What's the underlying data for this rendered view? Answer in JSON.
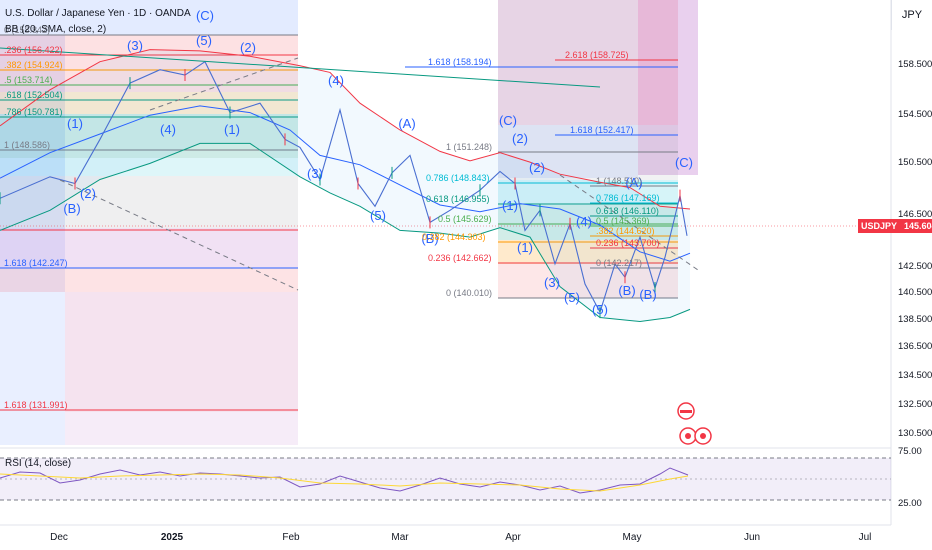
{
  "header": {
    "symbol_title": "U.S. Dollar / Japanese Yen · 1D · OANDA",
    "indicator_bb": "BB (20, SMA, close, 2)",
    "indicator_rsi": "RSI (14, close)",
    "unit": "JPY"
  },
  "last_price": {
    "symbol": "USDJPY",
    "value": "145.604",
    "color": "#f23645"
  },
  "chart_data": {
    "type": "line",
    "x_ticks": [
      "Dec",
      "2025",
      "Feb",
      "Mar",
      "Apr",
      "May",
      "Jun",
      "Jul"
    ],
    "y_ticks": [
      "158.500",
      "154.500",
      "150.500",
      "146.500",
      "142.500",
      "140.500",
      "138.500",
      "136.500",
      "134.500",
      "132.500",
      "130.500"
    ],
    "ylim": [
      128.8,
      161.2
    ],
    "rsi_ticks": [
      "75.00",
      "25.00"
    ],
    "price_path": [
      [
        0,
        148.4
      ],
      [
        50,
        150.0
      ],
      [
        75,
        149.5
      ],
      [
        100,
        152.8
      ],
      [
        130,
        157.0
      ],
      [
        160,
        158.0
      ],
      [
        185,
        157.6
      ],
      [
        205,
        158.6
      ],
      [
        230,
        154.8
      ],
      [
        260,
        155.5
      ],
      [
        285,
        152.8
      ],
      [
        300,
        152.2
      ],
      [
        320,
        149.8
      ],
      [
        340,
        155.0
      ],
      [
        358,
        149.5
      ],
      [
        375,
        147.8
      ],
      [
        392,
        150.3
      ],
      [
        410,
        151.6
      ],
      [
        430,
        146.6
      ],
      [
        450,
        147.5
      ],
      [
        480,
        149.0
      ],
      [
        500,
        150.4
      ],
      [
        515,
        149.5
      ],
      [
        525,
        146.0
      ],
      [
        540,
        147.5
      ],
      [
        555,
        143.5
      ],
      [
        570,
        146.5
      ],
      [
        585,
        142.0
      ],
      [
        600,
        139.9
      ],
      [
        615,
        143.5
      ],
      [
        625,
        142.5
      ],
      [
        640,
        145.5
      ],
      [
        655,
        141.7
      ],
      [
        665,
        144.0
      ],
      [
        680,
        148.6
      ],
      [
        687,
        145.6
      ]
    ],
    "bb_upper": [
      [
        0,
        153.8
      ],
      [
        50,
        156.5
      ],
      [
        100,
        158.6
      ],
      [
        150,
        159.5
      ],
      [
        200,
        159.4
      ],
      [
        250,
        159.0
      ],
      [
        300,
        158.3
      ],
      [
        330,
        157.8
      ],
      [
        360,
        155.5
      ],
      [
        400,
        153.5
      ],
      [
        440,
        151.9
      ],
      [
        470,
        151.2
      ],
      [
        500,
        151.8
      ],
      [
        530,
        151.1
      ],
      [
        560,
        150.2
      ],
      [
        600,
        149.6
      ],
      [
        630,
        149.2
      ],
      [
        660,
        147.8
      ],
      [
        690,
        147.6
      ]
    ],
    "bb_middle": [
      [
        0,
        149.9
      ],
      [
        50,
        151.8
      ],
      [
        100,
        153.2
      ],
      [
        150,
        154.6
      ],
      [
        200,
        155.3
      ],
      [
        250,
        154.8
      ],
      [
        290,
        153.5
      ],
      [
        320,
        151.6
      ],
      [
        360,
        150.9
      ],
      [
        400,
        149.4
      ],
      [
        440,
        147.9
      ],
      [
        480,
        147.4
      ],
      [
        520,
        148.0
      ],
      [
        560,
        147.6
      ],
      [
        600,
        146.4
      ],
      [
        640,
        144.4
      ],
      [
        670,
        143.7
      ],
      [
        690,
        144.3
      ]
    ],
    "bb_lower": [
      [
        0,
        146.0
      ],
      [
        50,
        147.5
      ],
      [
        100,
        149.8
      ],
      [
        150,
        151.0
      ],
      [
        200,
        152.5
      ],
      [
        250,
        152.5
      ],
      [
        300,
        150.0
      ],
      [
        330,
        148.8
      ],
      [
        360,
        147.8
      ],
      [
        400,
        146.0
      ],
      [
        440,
        145.8
      ],
      [
        470,
        145.5
      ],
      [
        500,
        146.2
      ],
      [
        530,
        145.5
      ],
      [
        560,
        141.8
      ],
      [
        600,
        139.5
      ],
      [
        640,
        139.2
      ],
      [
        670,
        139.5
      ],
      [
        690,
        140.1
      ]
    ],
    "fib_levels": [
      {
        "label": "0 (158.842)",
        "value": 158.842
      },
      {
        "label": ".236 (156.422)",
        "value": 156.422
      },
      {
        "label": ".382 (154.924)",
        "value": 154.924
      },
      {
        "label": ".5 (153.714)",
        "value": 153.714
      },
      {
        "label": ".618 (152.504)",
        "value": 152.504
      },
      {
        "label": ".786 (150.781)",
        "value": 150.781
      },
      {
        "label": "1 (148.586)",
        "value": 148.586
      },
      {
        "label": "1.618 (142.247)",
        "value": 142.247
      },
      {
        "label": "1.618 (131.991)",
        "value": 131.991
      },
      {
        "label": "1.618 (158.194)",
        "value": 158.194
      },
      {
        "label": "2.618 (158.725)",
        "value": 158.725
      },
      {
        "label": "1.618 (152.417)",
        "value": 152.417
      },
      {
        "label": "1 (151.248)",
        "value": 151.248
      },
      {
        "label": "0.786 (148.843)",
        "value": 148.843
      },
      {
        "label": "0.618 (146.955)",
        "value": 146.955
      },
      {
        "label": "0.5 (145.629)",
        "value": 145.629
      },
      {
        "label": "0.382 (144.303)",
        "value": 144.303
      },
      {
        "label": "0.236 (142.662)",
        "value": 142.662
      },
      {
        "label": "0 (140.010)",
        "value": 140.01
      },
      {
        "label": "1 (148.510)",
        "value": 148.51
      },
      {
        "label": "0.786 (147.169)",
        "value": 147.169
      },
      {
        "label": "0.618 (146.110)",
        "value": 146.11
      },
      {
        "label": "0.5 (145.369)",
        "value": 145.369
      },
      {
        "label": ".382 (144.620)",
        "value": 144.62
      },
      {
        "label": "0.236 (143.700)",
        "value": 143.7
      },
      {
        "label": "0 (142.217)",
        "value": 142.217
      }
    ],
    "wave_labels": [
      "(C)",
      "(3)",
      "(5)",
      "(2)",
      "(1)",
      "(4)",
      "(1)",
      "(B)",
      "(2)",
      "(4)",
      "(3)",
      "(5)",
      "(A)",
      "(B)",
      "(C)",
      "(2)",
      "(2)",
      "(1)",
      "(4)",
      "(1)",
      "(3)",
      "(5)",
      "(5)",
      "(B)",
      "(B)",
      "(A)",
      "(C)"
    ],
    "rsi_path": [
      [
        0,
        478
      ],
      [
        20,
        472
      ],
      [
        40,
        473
      ],
      [
        60,
        483
      ],
      [
        80,
        480
      ],
      [
        100,
        474
      ],
      [
        120,
        470
      ],
      [
        140,
        475
      ],
      [
        160,
        472
      ],
      [
        180,
        476
      ],
      [
        200,
        473
      ],
      [
        220,
        474
      ],
      [
        240,
        476
      ],
      [
        260,
        478
      ],
      [
        280,
        477
      ],
      [
        300,
        487
      ],
      [
        320,
        484
      ],
      [
        340,
        476
      ],
      [
        360,
        482
      ],
      [
        380,
        488
      ],
      [
        400,
        491
      ],
      [
        420,
        485
      ],
      [
        440,
        478
      ],
      [
        460,
        484
      ],
      [
        480,
        487
      ],
      [
        500,
        482
      ],
      [
        520,
        485
      ],
      [
        540,
        490
      ],
      [
        560,
        486
      ],
      [
        580,
        493
      ],
      [
        600,
        490
      ],
      [
        620,
        485
      ],
      [
        640,
        484
      ],
      [
        660,
        474
      ],
      [
        670,
        468
      ],
      [
        688,
        475
      ]
    ],
    "rsi_ma_path": [
      [
        0,
        474
      ],
      [
        40,
        476
      ],
      [
        80,
        478
      ],
      [
        120,
        476
      ],
      [
        160,
        475
      ],
      [
        200,
        474
      ],
      [
        240,
        475
      ],
      [
        280,
        478
      ],
      [
        320,
        483
      ],
      [
        360,
        484
      ],
      [
        400,
        486
      ],
      [
        440,
        483
      ],
      [
        480,
        484
      ],
      [
        520,
        485
      ],
      [
        560,
        489
      ],
      [
        600,
        491
      ],
      [
        640,
        485
      ],
      [
        670,
        479
      ],
      [
        688,
        476
      ]
    ]
  }
}
